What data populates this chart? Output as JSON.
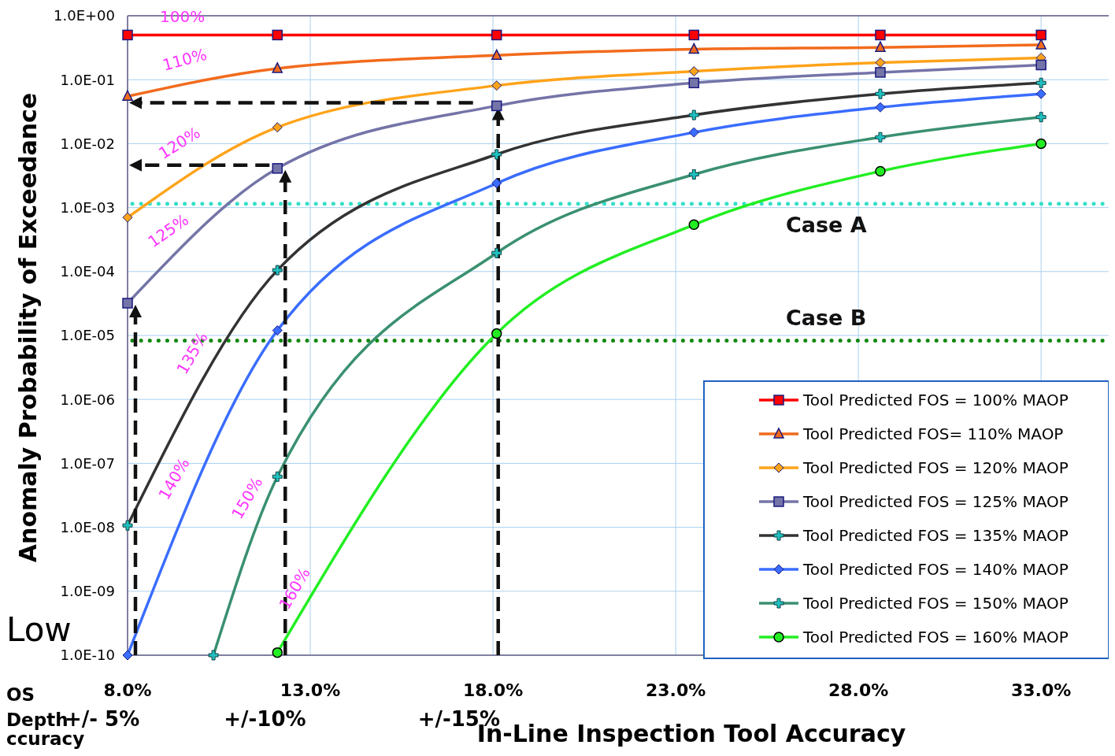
{
  "chart_data": {
    "type": "line",
    "xlabel": "In-Line Inspection Tool Accuracy",
    "ylabel": "Anomaly Probability of Exceedance",
    "log": "y",
    "grid": true,
    "legend": "bottom right",
    "line_style": "solid",
    "xlim": [
      8,
      34.85
    ],
    "xticks": [
      {
        "value": 8,
        "label": "8.0%"
      },
      {
        "value": 13,
        "label": "13.0%"
      },
      {
        "value": 18,
        "label": "18.0%"
      },
      {
        "value": 23,
        "label": "23.0%"
      },
      {
        "value": 28,
        "label": "28.0%"
      },
      {
        "value": 33,
        "label": "33.0%"
      }
    ],
    "ylim": [
      1e-10,
      1
    ],
    "yticks": [
      {
        "value": 1e-10,
        "label": "1.0E-10"
      },
      {
        "value": 1e-09,
        "label": "1.0E-09"
      },
      {
        "value": 1e-08,
        "label": "1.0E-08"
      },
      {
        "value": 1e-07,
        "label": "1.0E-07"
      },
      {
        "value": 1e-06,
        "label": "1.0E-06"
      },
      {
        "value": 1e-05,
        "label": "1.0E-05"
      },
      {
        "value": 0.0001,
        "label": "1.0E-04"
      },
      {
        "value": 0.001,
        "label": "1.0E-03"
      },
      {
        "value": 0.01,
        "label": "1.0E-02"
      },
      {
        "value": 0.1,
        "label": "1.0E-01"
      },
      {
        "value": 1,
        "label": "1.0E+00"
      }
    ],
    "x": [
      8,
      12.1,
      18.1,
      23.5,
      28.6,
      33
    ],
    "series": [
      {
        "name": "Tool Predicted FOS = 100% MAOP",
        "color": "#ff0000",
        "marker": "square",
        "values": [
          0.5,
          0.5,
          0.5,
          0.5,
          0.5,
          0.5
        ]
      },
      {
        "name": "Tool Predicted FOS= 110% MAOP",
        "color": "#f26b1d",
        "marker": "triangle",
        "values": [
          0.055,
          0.15,
          0.24,
          0.3,
          0.32,
          0.35
        ]
      },
      {
        "name": "Tool Predicted FOS = 120% MAOP",
        "color": "#ffa31a",
        "marker": "diamond",
        "values": [
          0.0007,
          0.018,
          0.081,
          0.135,
          0.185,
          0.22
        ]
      },
      {
        "name": "Tool Predicted FOS = 125% MAOP",
        "color": "#7474a8",
        "marker": "square",
        "values": [
          3.2e-05,
          0.0041,
          0.039,
          0.089,
          0.13,
          0.17
        ]
      },
      {
        "name": "Tool Predicted FOS = 135% MAOP",
        "color": "#333333",
        "marker": "cross",
        "values": [
          1.07e-08,
          0.000105,
          0.0068,
          0.028,
          0.06,
          0.089
        ]
      },
      {
        "name": "Tool Predicted FOS = 140% MAOP",
        "color": "#3a6dff",
        "marker": "diamond",
        "values": [
          1e-10,
          1.2e-05,
          0.0024,
          0.015,
          0.037,
          0.06
        ]
      },
      {
        "name": "Tool Predicted FOS = 150% MAOP",
        "color": "#3a9070",
        "marker": "cross",
        "x": [
          10.35,
          12.1,
          18.1,
          23.5,
          28.6,
          33
        ],
        "values": [
          1e-10,
          6.2e-08,
          0.000195,
          0.0033,
          0.0126,
          0.026
        ]
      },
      {
        "name": "Tool Predicted FOS = 160% MAOP",
        "color": "#22ee22",
        "marker": "circle",
        "x": [
          12.1,
          18.1,
          23.5,
          28.6,
          33
        ],
        "values": [
          1.1e-10,
          1.07e-05,
          0.00054,
          0.0037,
          0.01
        ]
      }
    ],
    "ref_lines": [
      {
        "axis": "y",
        "value": 0.00115,
        "label": "Case A",
        "color": "#33e0c8",
        "line_style": "dotted"
      },
      {
        "axis": "y",
        "value": 8.3e-06,
        "label": "Case B",
        "color": "#118811",
        "line_style": "dotted"
      }
    ],
    "annotations": [
      "Low",
      "OS",
      "Depth",
      "ccuracy",
      "+/- 5%",
      "+/-10%",
      "+/-15%",
      "100%",
      "110%",
      "120%",
      "125%",
      "135%",
      "140%",
      "150%",
      "160%"
    ]
  }
}
